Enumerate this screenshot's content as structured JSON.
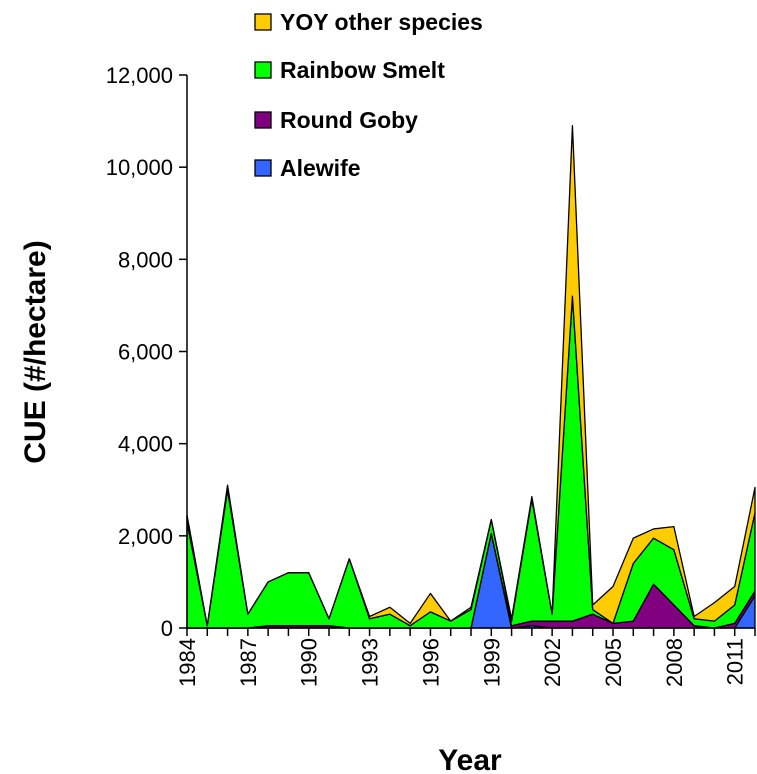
{
  "chart_data": {
    "type": "area",
    "stacked": true,
    "xlabel": "Year",
    "ylabel": "CUE (#/hectare)",
    "ylim": [
      0,
      12000
    ],
    "yticks": [
      0,
      2000,
      4000,
      6000,
      8000,
      10000,
      12000
    ],
    "ytick_labels": [
      "0",
      "2,000",
      "4,000",
      "6,000",
      "8,000",
      "10,000",
      "12,000"
    ],
    "xlim": [
      1984,
      2012
    ],
    "xticks": [
      1984,
      1987,
      1990,
      1993,
      1996,
      1999,
      2002,
      2005,
      2008,
      2011
    ],
    "xtick_labels": [
      "1984",
      "1987",
      "1990",
      "1993",
      "1996",
      "1999",
      "2002",
      "2005",
      "2008",
      "2011"
    ],
    "x": [
      1984,
      1985,
      1986,
      1987,
      1988,
      1989,
      1990,
      1991,
      1992,
      1993,
      1994,
      1995,
      1996,
      1997,
      1998,
      1999,
      2000,
      2001,
      2002,
      2003,
      2004,
      2005,
      2006,
      2007,
      2008,
      2009,
      2010,
      2011,
      2012
    ],
    "legend_position": "top",
    "series": [
      {
        "name": "Alewife",
        "color": "#3366FF",
        "values": [
          0,
          0,
          0,
          0,
          0,
          0,
          0,
          0,
          0,
          0,
          0,
          0,
          0,
          0,
          0,
          2050,
          0,
          50,
          0,
          0,
          0,
          0,
          0,
          0,
          0,
          0,
          0,
          0,
          700
        ]
      },
      {
        "name": "Round Goby",
        "color": "#800080",
        "values": [
          0,
          0,
          0,
          0,
          50,
          50,
          50,
          50,
          0,
          0,
          0,
          0,
          0,
          0,
          0,
          0,
          50,
          100,
          150,
          150,
          300,
          100,
          150,
          950,
          500,
          50,
          0,
          100,
          100
        ]
      },
      {
        "name": "Rainbow Smelt",
        "color": "#00FF00",
        "values": [
          2300,
          50,
          3000,
          300,
          950,
          1150,
          1150,
          150,
          1500,
          200,
          300,
          50,
          350,
          150,
          400,
          300,
          100,
          2650,
          150,
          7050,
          100,
          0,
          1250,
          1000,
          1200,
          150,
          150,
          400,
          1700
        ]
      },
      {
        "name": "YOY other species",
        "color": "#FFCC00",
        "values": [
          150,
          0,
          100,
          0,
          0,
          0,
          0,
          0,
          0,
          50,
          150,
          50,
          400,
          0,
          50,
          0,
          50,
          50,
          0,
          3700,
          100,
          800,
          550,
          200,
          500,
          50,
          400,
          400,
          550
        ]
      }
    ]
  }
}
